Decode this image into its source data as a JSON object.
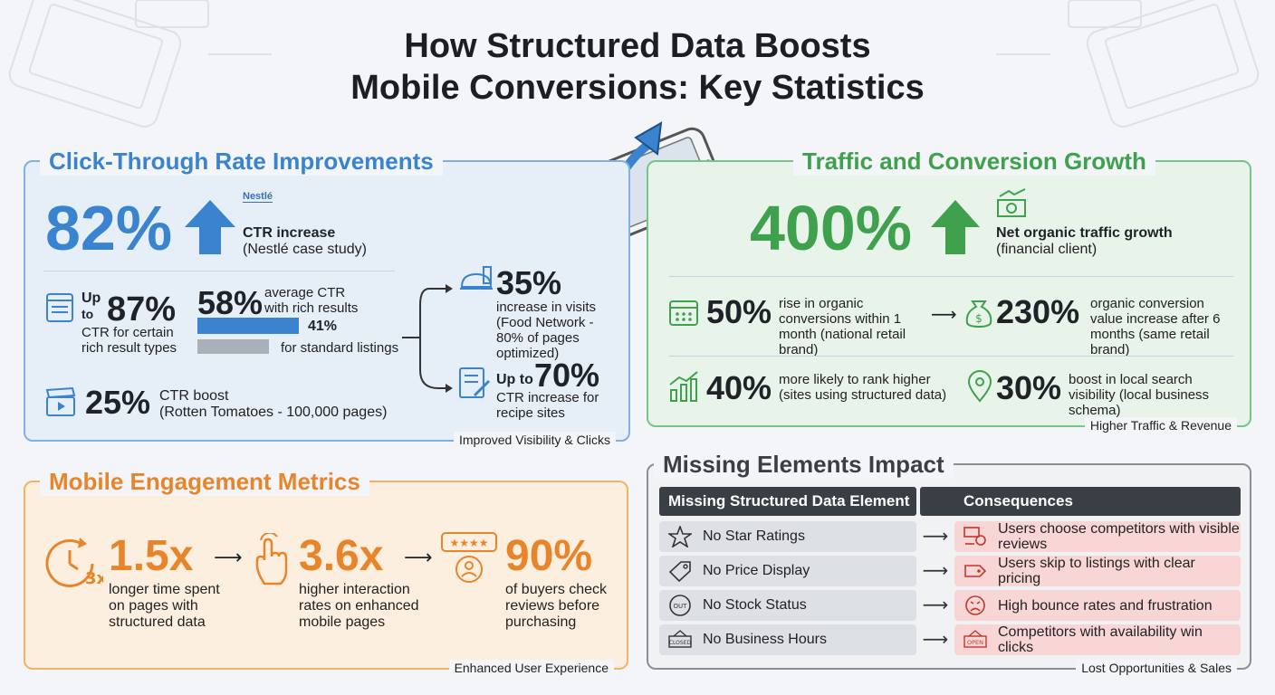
{
  "title": {
    "line1": "How Structured Data Boosts",
    "line2": "Mobile Conversions: Key Statistics"
  },
  "ctr": {
    "heading": "Click-Through Rate Improvements",
    "footer": "Improved Visibility & Clicks",
    "nestle": {
      "value": "82%",
      "logo_text": "Nestlé",
      "label": "CTR increase",
      "sub": "(Nestlé case study)"
    },
    "rich": {
      "prefix_up": "Up",
      "prefix_to": "to",
      "value": "87%",
      "desc": "CTR for certain rich result types"
    },
    "compare": {
      "rich_value": "58%",
      "rich_label": "average CTR with rich results",
      "std_value": "41%",
      "std_label": "for standard listings",
      "rich_fraction": 0.58,
      "std_fraction": 0.41
    },
    "rotten": {
      "value": "25%",
      "label": "CTR boost",
      "sub": "(Rotten Tomatoes - 100,000 pages)"
    },
    "food": {
      "value": "35%",
      "desc": "increase in visits (Food Network - 80% of pages optimized)"
    },
    "recipe": {
      "prefix": "Up to",
      "value": "70%",
      "desc": "CTR increase for recipe sites"
    }
  },
  "traffic": {
    "heading": "Traffic and Conversion Growth",
    "footer": "Higher Traffic & Revenue",
    "main": {
      "value": "400%",
      "label": "Net organic traffic growth",
      "sub": "(financial client)"
    },
    "conv": {
      "value": "50%",
      "desc": "rise in organic conversions within 1 month (national retail brand)"
    },
    "value_inc": {
      "value": "230%",
      "desc": "organic conversion value increase after 6 months (same retail brand)"
    },
    "rank": {
      "value": "40%",
      "desc": "more likely to rank higher (sites using structured data)"
    },
    "local": {
      "value": "30%",
      "desc": "boost in local search visibility (local business schema)"
    }
  },
  "mobile": {
    "heading": "Mobile Engagement Metrics",
    "footer": "Enhanced User Experience",
    "clock_text": "3x",
    "time": {
      "value": "1.5x",
      "desc": "longer time spent on pages with structured data"
    },
    "interact": {
      "value": "3.6x",
      "desc": "higher interaction rates on enhanced mobile pages"
    },
    "reviews": {
      "value": "90%",
      "desc": "of buyers check reviews before purchasing"
    }
  },
  "missing": {
    "heading": "Missing Elements Impact",
    "footer": "Lost Opportunities & Sales",
    "col_element": "Missing Structured Data Element",
    "col_consequence": "Consequences",
    "rows": [
      {
        "element": "No Star Ratings",
        "consequence": "Users choose competitors with visible reviews",
        "icon": "star-icon",
        "cicon": "reviews-icon"
      },
      {
        "element": "No Price Display",
        "consequence": "Users skip to listings with clear pricing",
        "icon": "price-tag-icon",
        "cicon": "tag-icon"
      },
      {
        "element": "No Stock Status",
        "consequence": "High bounce rates and frustration",
        "icon": "stock-icon",
        "cicon": "frown-icon"
      },
      {
        "element": "No Business Hours",
        "consequence": "Competitors with availability win clicks",
        "icon": "closed-sign-icon",
        "cicon": "open-sign-icon"
      }
    ],
    "stock_icon_text": "OUT",
    "closed_icon_text": "CLOSED",
    "open_icon_text": "OPEN"
  },
  "colors": {
    "blue": "#3a83cf",
    "green": "#3fa14d",
    "orange": "#e8852b",
    "dark": "#3a3f45"
  }
}
